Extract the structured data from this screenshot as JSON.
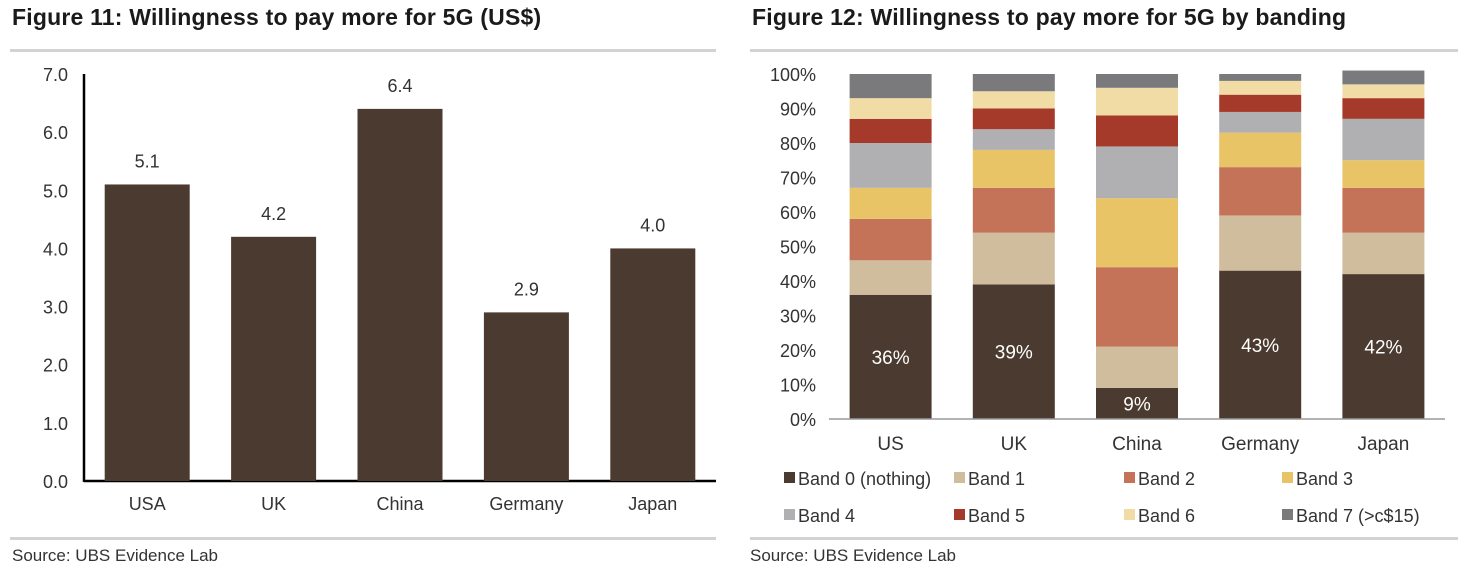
{
  "charts": [
    {
      "title": "Figure 11: Willingness to pay more for 5G (US$)",
      "source": "Source:  UBS Evidence Lab",
      "chart_data": {
        "type": "bar",
        "categories": [
          "USA",
          "UK",
          "China",
          "Germany",
          "Japan"
        ],
        "values": [
          5.1,
          4.2,
          6.4,
          2.9,
          4.0
        ],
        "value_labels": [
          "5.1",
          "4.2",
          "6.4",
          "2.9",
          "4.0"
        ],
        "ylim": [
          0,
          7
        ],
        "yticks": [
          "0.0",
          "1.0",
          "2.0",
          "3.0",
          "4.0",
          "5.0",
          "6.0",
          "7.0"
        ],
        "xlabel": "",
        "ylabel": "",
        "grid": false,
        "colors": {
          "bar": "#4b3a2f",
          "axis": "#000000"
        }
      }
    },
    {
      "title": "Figure 12: Willingness to pay more for 5G by banding",
      "source": "Source:  UBS Evidence Lab",
      "chart_data": {
        "type": "bar",
        "stacked": true,
        "categories": [
          "US",
          "UK",
          "China",
          "Germany",
          "Japan"
        ],
        "ylim": [
          0,
          100
        ],
        "yticks": [
          "0%",
          "10%",
          "20%",
          "30%",
          "40%",
          "50%",
          "60%",
          "70%",
          "80%",
          "90%",
          "100%"
        ],
        "series": [
          {
            "name": "Band 0 (nothing)",
            "color": "#4b3a2f",
            "values": [
              36,
              39,
              9,
              43,
              42
            ]
          },
          {
            "name": "Band 1",
            "color": "#cfbd9d",
            "values": [
              10,
              15,
              12,
              16,
              12
            ]
          },
          {
            "name": "Band 2",
            "color": "#c47358",
            "values": [
              12,
              13,
              23,
              14,
              13
            ]
          },
          {
            "name": "Band 3",
            "color": "#e8c466",
            "values": [
              9,
              11,
              20,
              10,
              8
            ]
          },
          {
            "name": "Band 4",
            "color": "#b0b0b2",
            "values": [
              13,
              6,
              15,
              6,
              12
            ]
          },
          {
            "name": "Band 5",
            "color": "#a63a2a",
            "values": [
              7,
              6,
              9,
              5,
              6
            ]
          },
          {
            "name": "Band 6",
            "color": "#f1dca6",
            "values": [
              6,
              5,
              8,
              4,
              4
            ]
          },
          {
            "name": "Band 7 (>c$15)",
            "color": "#7a7a7c",
            "values": [
              7,
              5,
              4,
              2,
              4
            ]
          }
        ],
        "data_labels": [
          "36%",
          "39%",
          "9%",
          "43%",
          "42%"
        ],
        "legend_position": "bottom",
        "grid": false
      }
    }
  ]
}
